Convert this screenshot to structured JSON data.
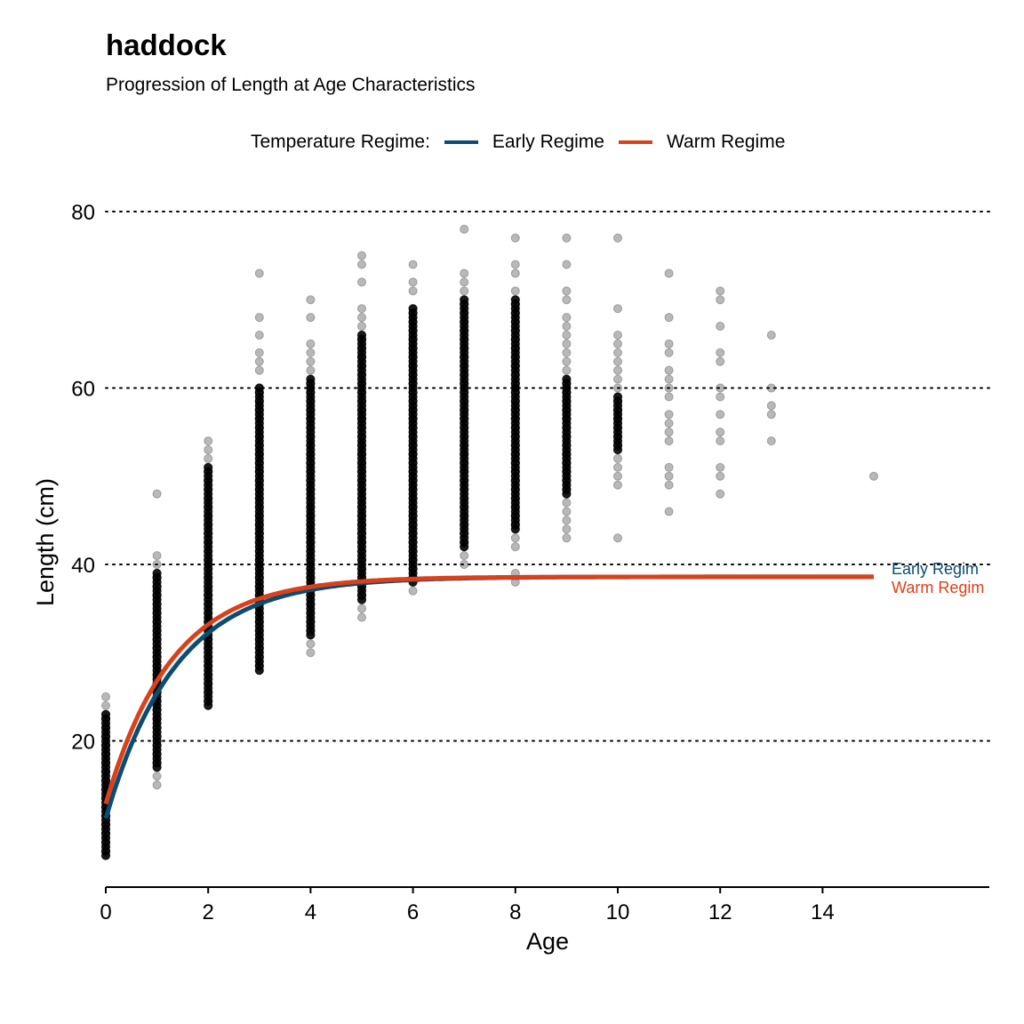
{
  "title": "haddock",
  "subtitle": "Progression of Length at Age Characteristics",
  "legend": {
    "title": "Temperature Regime:",
    "items": [
      {
        "label": "Early Regime",
        "color": "#0b4d72"
      },
      {
        "label": "Warm Regime",
        "color": "#d9411b"
      }
    ]
  },
  "end_labels": {
    "early": "Early Regim",
    "warm": "Warm Regim"
  },
  "chart_data": {
    "type": "scatter",
    "title": "haddock",
    "subtitle": "Progression of Length at Age Characteristics",
    "xlabel": "Age",
    "ylabel": "Length (cm)",
    "xlim": [
      0,
      17.2
    ],
    "ylim": [
      4,
      80
    ],
    "x_ticks": [
      0,
      2,
      4,
      6,
      8,
      10,
      12,
      14
    ],
    "y_ticks": [
      20,
      40,
      60,
      80
    ],
    "grid": "horizontal dotted",
    "legend_position": "top",
    "points": [
      {
        "age": 0,
        "lengths": [
          7,
          8,
          9,
          10,
          11,
          12,
          13,
          14,
          15,
          16,
          17,
          18,
          19,
          20,
          21,
          22,
          23,
          24,
          25
        ],
        "dense": [
          7,
          23
        ]
      },
      {
        "age": 1,
        "lengths": [
          15,
          16,
          17,
          18,
          19,
          20,
          21,
          22,
          23,
          24,
          25,
          26,
          27,
          28,
          29,
          30,
          31,
          32,
          33,
          34,
          35,
          36,
          37,
          38,
          39,
          40,
          41,
          48
        ],
        "dense": [
          17,
          39
        ]
      },
      {
        "age": 2,
        "lengths": [
          24,
          25,
          26,
          27,
          28,
          29,
          30,
          31,
          32,
          33,
          34,
          35,
          36,
          37,
          38,
          39,
          40,
          41,
          42,
          43,
          44,
          45,
          46,
          47,
          48,
          49,
          50,
          51,
          52,
          53,
          54
        ],
        "dense": [
          24,
          51
        ]
      },
      {
        "age": 3,
        "lengths": [
          28,
          29,
          30,
          31,
          32,
          33,
          34,
          35,
          36,
          37,
          38,
          39,
          40,
          41,
          42,
          43,
          44,
          45,
          46,
          47,
          48,
          49,
          50,
          51,
          52,
          53,
          54,
          55,
          56,
          57,
          58,
          59,
          60,
          62,
          63,
          64,
          66,
          68,
          73
        ],
        "dense": [
          28,
          60
        ]
      },
      {
        "age": 4,
        "lengths": [
          30,
          31,
          32,
          33,
          34,
          35,
          36,
          37,
          38,
          39,
          40,
          41,
          42,
          43,
          44,
          45,
          46,
          47,
          48,
          49,
          50,
          51,
          52,
          53,
          54,
          55,
          56,
          57,
          58,
          59,
          60,
          61,
          62,
          63,
          64,
          65,
          68,
          70
        ],
        "dense": [
          32,
          61
        ]
      },
      {
        "age": 5,
        "lengths": [
          34,
          35,
          36,
          37,
          38,
          39,
          40,
          41,
          42,
          43,
          44,
          45,
          46,
          47,
          48,
          49,
          50,
          51,
          52,
          53,
          54,
          55,
          56,
          57,
          58,
          59,
          60,
          61,
          62,
          63,
          64,
          65,
          66,
          67,
          68,
          69,
          72,
          74,
          75
        ],
        "dense": [
          36,
          66
        ]
      },
      {
        "age": 6,
        "lengths": [
          37,
          38,
          39,
          40,
          41,
          42,
          43,
          44,
          45,
          46,
          47,
          48,
          49,
          50,
          51,
          52,
          53,
          54,
          55,
          56,
          57,
          58,
          59,
          60,
          61,
          62,
          63,
          64,
          65,
          66,
          67,
          68,
          69,
          71,
          72,
          74
        ],
        "dense": [
          38,
          69
        ]
      },
      {
        "age": 7,
        "lengths": [
          40,
          41,
          42,
          43,
          44,
          45,
          46,
          47,
          48,
          49,
          50,
          51,
          52,
          53,
          54,
          55,
          56,
          57,
          58,
          59,
          60,
          61,
          62,
          63,
          64,
          65,
          66,
          67,
          68,
          69,
          70,
          71,
          72,
          73,
          78
        ],
        "dense": [
          42,
          70
        ]
      },
      {
        "age": 8,
        "lengths": [
          38,
          39,
          42,
          43,
          44,
          45,
          46,
          47,
          48,
          49,
          50,
          51,
          52,
          53,
          54,
          55,
          56,
          57,
          58,
          59,
          60,
          61,
          62,
          63,
          64,
          65,
          66,
          67,
          68,
          69,
          70,
          71,
          73,
          74,
          77
        ],
        "dense": [
          44,
          70
        ]
      },
      {
        "age": 9,
        "lengths": [
          43,
          44,
          45,
          46,
          47,
          48,
          49,
          50,
          51,
          52,
          53,
          54,
          55,
          56,
          57,
          58,
          59,
          60,
          61,
          62,
          63,
          64,
          65,
          66,
          67,
          68,
          70,
          71,
          74,
          77
        ],
        "dense": [
          48,
          61
        ]
      },
      {
        "age": 10,
        "lengths": [
          43,
          49,
          50,
          51,
          52,
          53,
          54,
          55,
          56,
          57,
          58,
          59,
          60,
          61,
          62,
          63,
          64,
          65,
          66,
          69,
          77
        ],
        "dense": [
          53,
          59
        ]
      },
      {
        "age": 11,
        "lengths": [
          46,
          49,
          50,
          51,
          54,
          55,
          56,
          57,
          59,
          60,
          61,
          62,
          64,
          65,
          68,
          73
        ],
        "dense": []
      },
      {
        "age": 12,
        "lengths": [
          48,
          50,
          51,
          54,
          55,
          57,
          59,
          60,
          63,
          64,
          67,
          70,
          71
        ],
        "dense": []
      },
      {
        "age": 13,
        "lengths": [
          54,
          57,
          58,
          60,
          66
        ],
        "dense": []
      },
      {
        "age": 15,
        "lengths": [
          50
        ],
        "dense": []
      }
    ],
    "series": [
      {
        "name": "Early Regime",
        "color": "#0b4d72",
        "linf": 38.6,
        "k": 0.73,
        "t0": -0.47,
        "x_max": 15
      },
      {
        "name": "Warm Regime",
        "color": "#d9411b",
        "linf": 38.6,
        "k": 0.78,
        "t0": -0.52,
        "x_max": 15
      }
    ]
  }
}
